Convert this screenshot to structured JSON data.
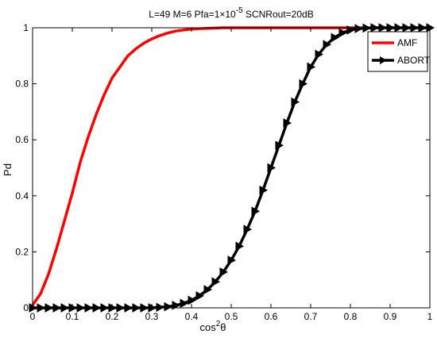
{
  "chart_data": {
    "type": "line",
    "title": {
      "main": "L=49  M=6  Pfa=1×10",
      "exponent": "-5",
      "tail": " SCNRout=20dB"
    },
    "xlabel": {
      "base": "cos",
      "exponent": "2",
      "tail": "θ"
    },
    "ylabel": "Pd",
    "xlim": [
      0,
      1
    ],
    "ylim": [
      0,
      1
    ],
    "xticks": [
      "0",
      "0.1",
      "0.2",
      "0.3",
      "0.4",
      "0.5",
      "0.6",
      "0.7",
      "0.8",
      "0.9",
      "1"
    ],
    "yticks": [
      "0",
      "0.2",
      "0.4",
      "0.6",
      "0.8",
      "1"
    ],
    "grid": false,
    "legend_position": "top-right",
    "series": [
      {
        "name": "AMF",
        "color": "#ff0000",
        "marker": "none",
        "x": [
          0,
          0.02,
          0.04,
          0.06,
          0.08,
          0.1,
          0.12,
          0.14,
          0.16,
          0.18,
          0.2,
          0.22,
          0.24,
          0.26,
          0.28,
          0.3,
          0.32,
          0.34,
          0.36,
          0.38,
          0.4,
          0.42,
          0.44,
          0.46,
          0.48,
          0.5,
          0.55,
          0.6,
          0.7,
          0.8,
          0.9,
          1.0
        ],
        "y": [
          0.01,
          0.05,
          0.12,
          0.21,
          0.31,
          0.41,
          0.52,
          0.61,
          0.69,
          0.76,
          0.82,
          0.86,
          0.9,
          0.925,
          0.945,
          0.96,
          0.972,
          0.981,
          0.988,
          0.992,
          0.995,
          0.997,
          0.998,
          0.999,
          1.0,
          1.0,
          1.0,
          1.0,
          1.0,
          1.0,
          1.0,
          1.0
        ]
      },
      {
        "name": "ABORT",
        "color": "#000000",
        "marker": "triangle-right",
        "x": [
          0,
          0.02,
          0.04,
          0.06,
          0.08,
          0.1,
          0.12,
          0.14,
          0.16,
          0.18,
          0.2,
          0.22,
          0.24,
          0.26,
          0.28,
          0.3,
          0.32,
          0.34,
          0.36,
          0.38,
          0.4,
          0.42,
          0.44,
          0.46,
          0.48,
          0.5,
          0.52,
          0.54,
          0.56,
          0.58,
          0.6,
          0.62,
          0.64,
          0.66,
          0.68,
          0.7,
          0.72,
          0.74,
          0.76,
          0.78,
          0.8,
          0.82,
          0.84,
          0.86,
          0.88,
          0.9,
          0.92,
          0.94,
          0.96,
          0.98,
          1.0
        ],
        "y": [
          0,
          0,
          0,
          0,
          0,
          0,
          0,
          0,
          0,
          0,
          0,
          0,
          0,
          0,
          0,
          0,
          0.002,
          0.004,
          0.009,
          0.016,
          0.027,
          0.043,
          0.065,
          0.093,
          0.128,
          0.17,
          0.22,
          0.28,
          0.345,
          0.42,
          0.5,
          0.58,
          0.66,
          0.735,
          0.8,
          0.86,
          0.905,
          0.94,
          0.965,
          0.982,
          0.992,
          0.997,
          0.999,
          1.0,
          1.0,
          1.0,
          1.0,
          1.0,
          1.0,
          1.0,
          1.0
        ]
      }
    ]
  }
}
